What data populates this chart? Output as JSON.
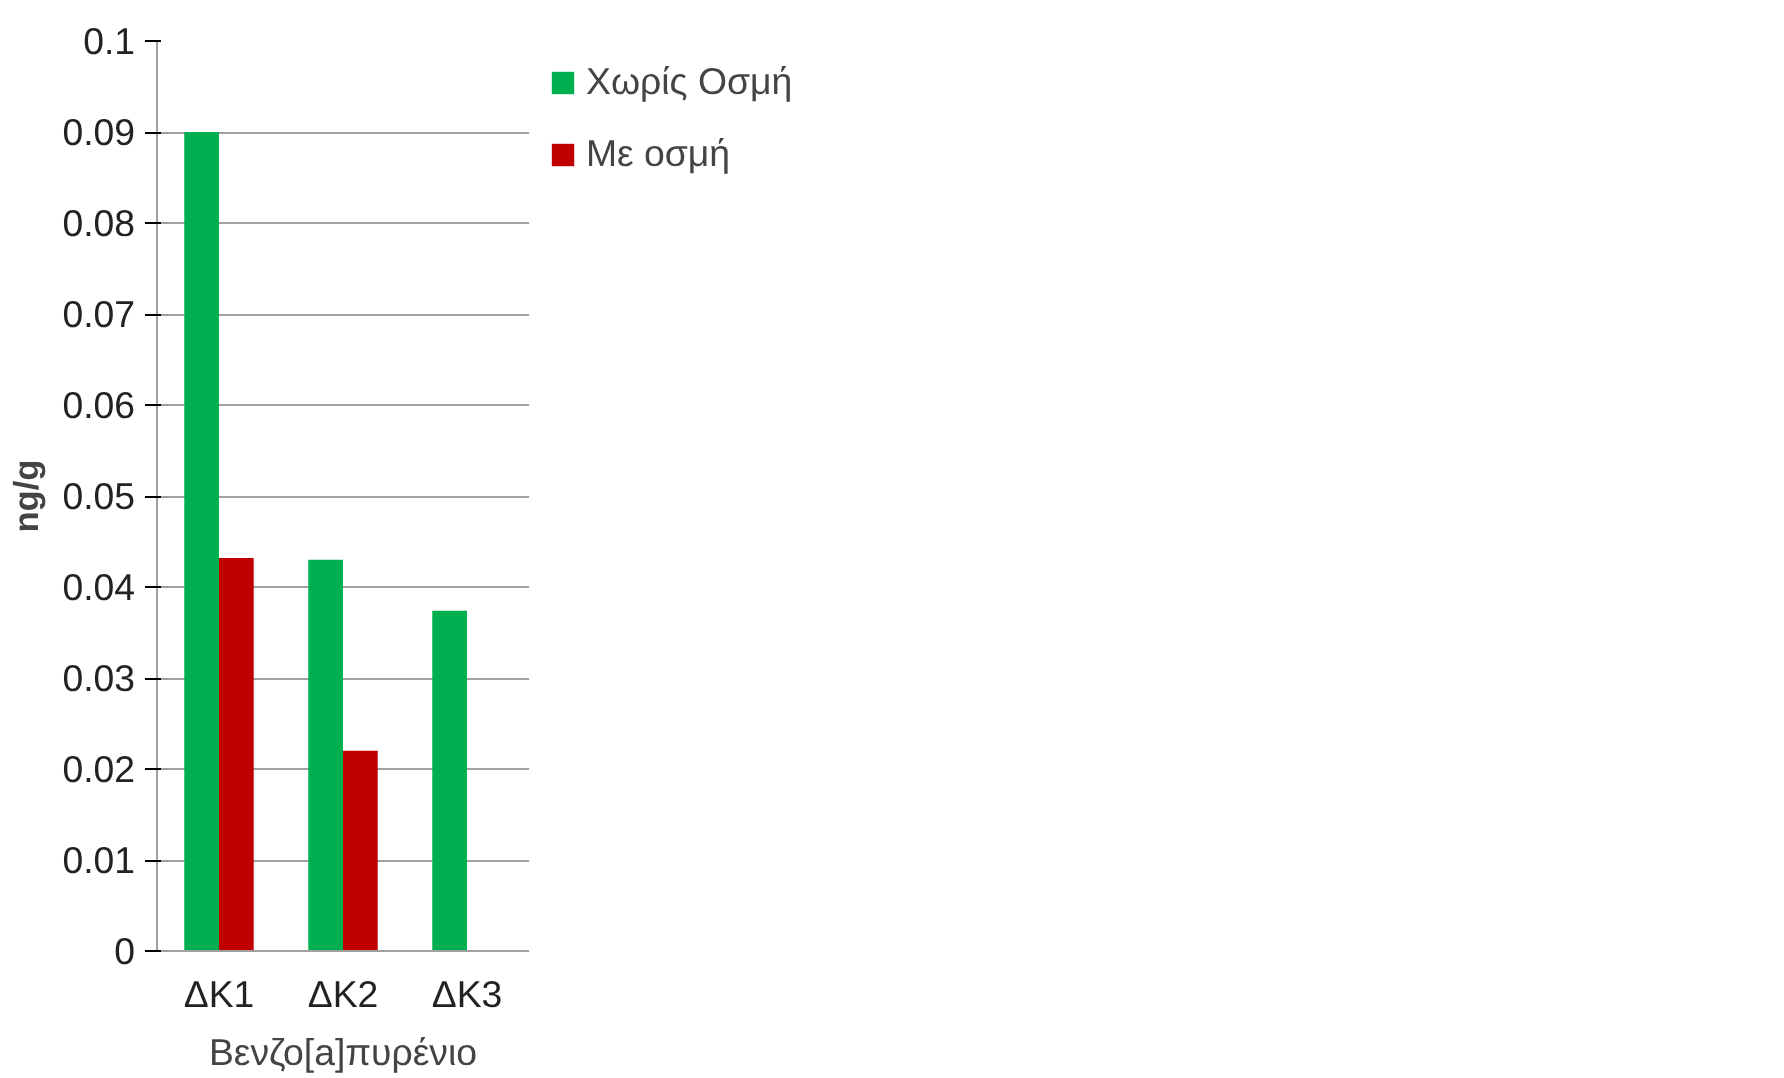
{
  "chart_data": {
    "type": "bar",
    "ylabel": "ng/g",
    "xlabel": "Βενζο[a]πυρένιο",
    "categories": [
      "ΔΚ1",
      "ΔΚ2",
      "ΔΚ3"
    ],
    "series": [
      {
        "name": "Χωρίς Οσμή",
        "color": "#00b050",
        "values": [
          0.09,
          0.043,
          0.0374
        ]
      },
      {
        "name": "Με οσμή",
        "color": "#c00000",
        "values": [
          0.0432,
          0.022,
          null
        ]
      }
    ],
    "ylim": [
      0,
      0.1
    ],
    "yticks": [
      0,
      0.01,
      0.02,
      0.03,
      0.04,
      0.05,
      0.06,
      0.07,
      0.08,
      0.09,
      0.1
    ],
    "grid": "y",
    "legend": "top right"
  }
}
